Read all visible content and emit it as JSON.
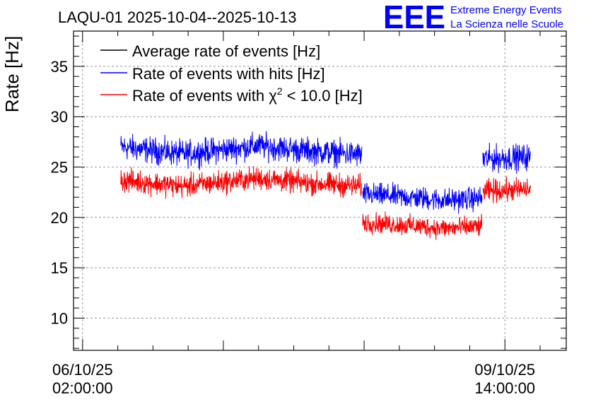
{
  "chart_data": {
    "type": "line",
    "title": "LAQU-01 2025-10-04--2025-10-13",
    "ylabel": "Rate [Hz]",
    "xlabel": "",
    "ylim": [
      6.8,
      38.5
    ],
    "xlim_hours": [
      -1.8,
      96.2
    ],
    "grid": true,
    "yticks": [
      10,
      15,
      20,
      25,
      30,
      35
    ],
    "xticks": [
      {
        "date": "06/10/25",
        "time": "02:00:00",
        "hours": 0
      },
      {
        "date": "09/10/25",
        "time": "14:00:00",
        "hours": 84
      }
    ],
    "legend_position": "top-left",
    "legend": [
      {
        "label": "Average rate of events [Hz]",
        "color": "#000000"
      },
      {
        "label": "Rate of events with hits [Hz]",
        "color": "#0000ff"
      },
      {
        "label_prefix": "Rate of events with ",
        "label_chi": "χ",
        "label_sup": "2",
        "label_suffix": " < 10.0 [Hz]",
        "color": "#ff0000"
      }
    ],
    "series": [
      {
        "name": "Rate of events with hits [Hz]",
        "color": "#0000ff",
        "segments": [
          {
            "start_hours": 7.6,
            "end_hours": 55.6,
            "mean": 26.7,
            "noise": 0.9,
            "drift": [
              [
                7.6,
                27.0
              ],
              [
                20.0,
                26.3
              ],
              [
                35.0,
                27.1
              ],
              [
                45.0,
                26.6
              ],
              [
                55.6,
                26.2
              ]
            ]
          },
          {
            "start_hours": 55.7,
            "end_hours": 79.5,
            "mean": 22.0,
            "noise": 0.8,
            "drift": [
              [
                55.7,
                22.3
              ],
              [
                65.0,
                22.0
              ],
              [
                72.0,
                21.7
              ],
              [
                79.5,
                21.9
              ]
            ]
          },
          {
            "start_hours": 79.6,
            "end_hours": 89.2,
            "mean": 25.9,
            "noise": 0.9,
            "drift": [
              [
                79.6,
                25.8
              ],
              [
                89.2,
                26.0
              ]
            ]
          }
        ]
      },
      {
        "name": "Rate of events with χ2 < 10.0 [Hz]",
        "color": "#ff0000",
        "segments": [
          {
            "start_hours": 7.6,
            "end_hours": 55.6,
            "mean": 23.4,
            "noise": 0.8,
            "drift": [
              [
                7.6,
                23.7
              ],
              [
                20.0,
                23.1
              ],
              [
                35.0,
                23.9
              ],
              [
                45.0,
                23.4
              ],
              [
                55.6,
                23.1
              ]
            ]
          },
          {
            "start_hours": 55.7,
            "end_hours": 79.5,
            "mean": 19.2,
            "noise": 0.7,
            "drift": [
              [
                55.7,
                19.5
              ],
              [
                65.0,
                19.2
              ],
              [
                72.0,
                18.9
              ],
              [
                79.5,
                19.1
              ]
            ]
          },
          {
            "start_hours": 79.6,
            "end_hours": 89.2,
            "mean": 22.7,
            "noise": 0.8,
            "drift": [
              [
                79.6,
                22.6
              ],
              [
                89.2,
                22.8
              ]
            ]
          }
        ]
      }
    ]
  },
  "logo": {
    "letters": "EEE",
    "line1": "Extreme Energy Events",
    "line2": "La Scienza nelle Scuole",
    "color": "#0000ff"
  }
}
